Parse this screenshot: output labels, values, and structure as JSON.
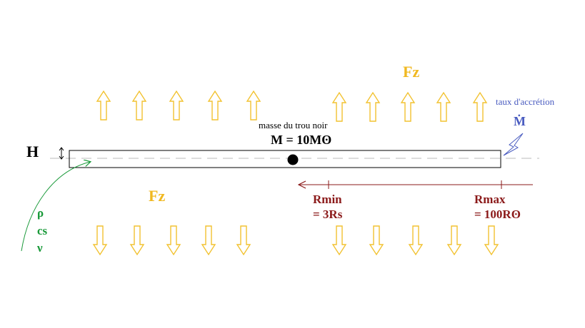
{
  "labels": {
    "fz_top": "Fz",
    "fz_bottom": "Fz",
    "height": "H",
    "mass_caption": "masse du trou noir",
    "mass_value": "M = 10Mʘ",
    "accretion_caption": "taux d'accrétion",
    "accretion_symbol": "Ṁ",
    "rmin_name": "Rmin",
    "rmin_value": "= 3Rs",
    "rmax_name": "Rmax",
    "rmax_value": "= 100Rʘ",
    "param_rho": "ρ",
    "param_cs": "cs",
    "param_nu": "ν"
  },
  "colors": {
    "force_arrows": "#f2c230",
    "force_label": "#f0b820",
    "radius": "#8b1a1a",
    "accretion": "#4a5cc0",
    "params": "#1a9a3a",
    "disk": "#000000",
    "dashed_axis": "#bbbbbb"
  },
  "icons": {
    "black_hole": "filled-circle",
    "inflow": "lightning-bolt-icon",
    "height_marker": "double-arrow-vertical-icon"
  }
}
